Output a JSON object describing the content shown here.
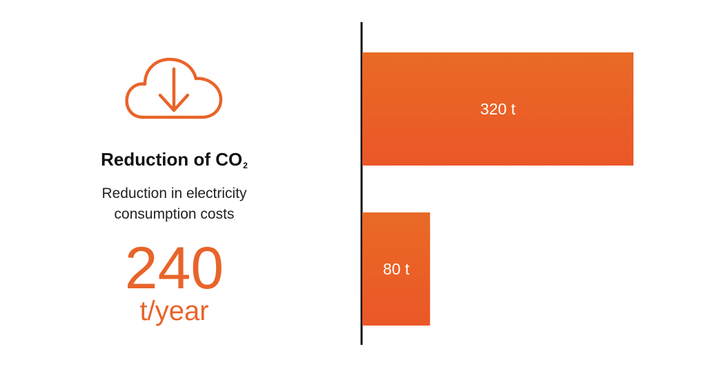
{
  "info": {
    "icon": "cloud-download-icon",
    "heading_main": "Reduction of CO",
    "heading_sub": "2",
    "subtext_line1": "Reduction in electricity",
    "subtext_line2": "consumption costs",
    "value": "240",
    "unit": "t/year"
  },
  "colors": {
    "accent": "#e8642a",
    "bar_top": "#e96a26",
    "bar_bottom": "#eb5727",
    "axis": "#111111",
    "label": "#ffffff"
  },
  "chart_data": {
    "type": "bar",
    "orientation": "horizontal",
    "values": [
      320,
      80
    ],
    "data_labels": [
      "320 t",
      "80 t"
    ],
    "xlim": [
      0,
      320
    ],
    "grid": false
  }
}
